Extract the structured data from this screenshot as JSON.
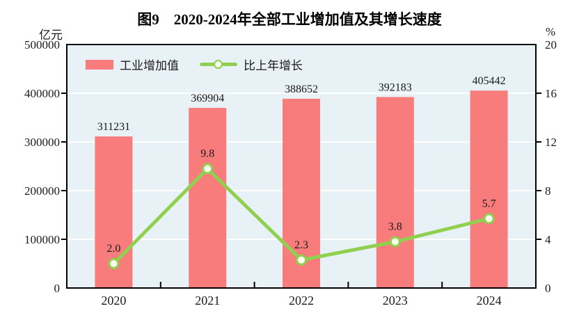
{
  "title": "图9　2020-2024年全部工业增加值及其增长速度",
  "left_axis_unit": "亿元",
  "right_axis_unit": "%",
  "legend": [
    {
      "label": "工业增加值",
      "type": "bar"
    },
    {
      "label": "比上年增长",
      "type": "line"
    }
  ],
  "colors": {
    "bar": "#F87C7C",
    "line": "#8FD04F",
    "marker_fill": "#FCFEF2",
    "plot_bg": "#E8F1F5",
    "grid": "#FFFFFF",
    "axis": "#000000",
    "text": "#1A1A1A"
  },
  "chart_data": {
    "type": "bar",
    "subtype": "bar+line combo, dual axis",
    "title": "图9　2020-2024年全部工业增加值及其增长速度",
    "categories": [
      "2020",
      "2021",
      "2022",
      "2023",
      "2024"
    ],
    "series": [
      {
        "name": "工业增加值",
        "type": "bar",
        "axis": "left",
        "values": [
          311231,
          369904,
          388652,
          392183,
          405442
        ],
        "labels": [
          "311231",
          "369904",
          "388652",
          "392183",
          "405442"
        ]
      },
      {
        "name": "比上年增长",
        "type": "line",
        "axis": "right",
        "values": [
          2.0,
          9.8,
          2.3,
          3.8,
          5.7
        ],
        "labels": [
          "2.0",
          "9.8",
          "2.3",
          "3.8",
          "5.7"
        ]
      }
    ],
    "left_ylabel": "亿元",
    "right_ylabel": "%",
    "left_ylim": [
      0,
      500000
    ],
    "left_ticks": [
      0,
      100000,
      200000,
      300000,
      400000,
      500000
    ],
    "left_tick_labels": [
      "0",
      "100000",
      "200000",
      "300000",
      "400000",
      "500000"
    ],
    "right_ylim": [
      0,
      20
    ],
    "right_ticks": [
      0,
      4,
      8,
      12,
      16,
      20
    ],
    "right_tick_labels": [
      "0",
      "4",
      "8",
      "12",
      "16",
      "20"
    ],
    "grid": true,
    "legend_position": "top-left-inside"
  }
}
